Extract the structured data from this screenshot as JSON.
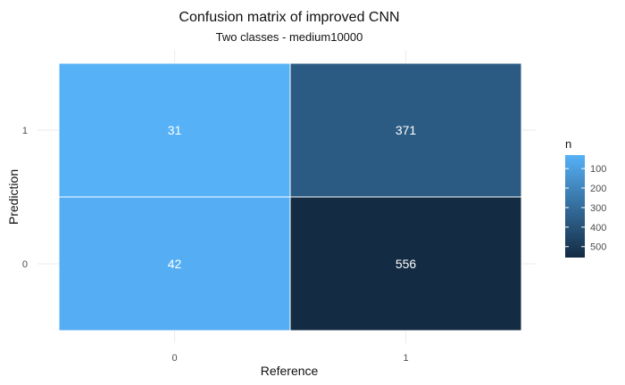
{
  "chart_data": {
    "type": "heatmap",
    "title": "Confusion matrix of improved CNN",
    "subtitle": "Two classes - medium10000",
    "xlabel": "Reference",
    "ylabel": "Prediction",
    "x_categories": [
      "0",
      "1"
    ],
    "y_categories": [
      "0",
      "1"
    ],
    "cells": [
      {
        "x": "0",
        "y": "1",
        "value": 31
      },
      {
        "x": "1",
        "y": "1",
        "value": 371
      },
      {
        "x": "0",
        "y": "0",
        "value": 42
      },
      {
        "x": "1",
        "y": "0",
        "value": 556
      }
    ],
    "legend": {
      "title": "n",
      "ticks": [
        100,
        200,
        300,
        400,
        500
      ],
      "range": [
        31,
        556
      ],
      "placement": "right"
    },
    "colors": {
      "low": "#56B1F7",
      "high": "#132B43",
      "cell_text": "#ffffff",
      "border": "#ffffff"
    },
    "grid": true
  }
}
